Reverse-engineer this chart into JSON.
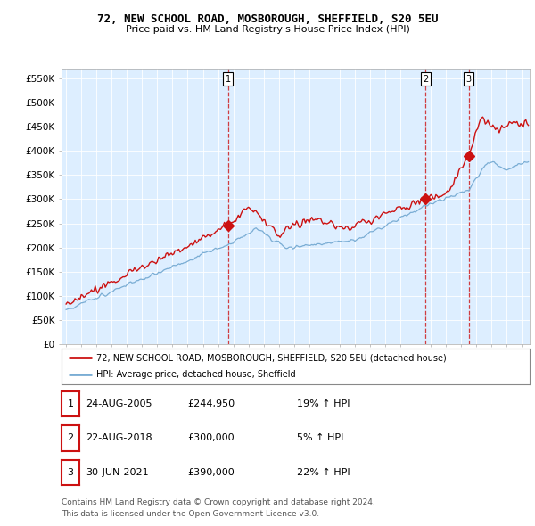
{
  "title": "72, NEW SCHOOL ROAD, MOSBOROUGH, SHEFFIELD, S20 5EU",
  "subtitle": "Price paid vs. HM Land Registry's House Price Index (HPI)",
  "ytick_values": [
    0,
    50000,
    100000,
    150000,
    200000,
    250000,
    300000,
    350000,
    400000,
    450000,
    500000,
    550000
  ],
  "ylim": [
    0,
    570000
  ],
  "xlim_start": 1995.0,
  "xlim_end": 2025.5,
  "transactions": [
    {
      "label": "1",
      "date": "24-AUG-2005",
      "price": 244950,
      "pct": "19%",
      "x_year": 2005.65
    },
    {
      "label": "2",
      "date": "22-AUG-2018",
      "price": 300000,
      "pct": "5%",
      "x_year": 2018.65
    },
    {
      "label": "3",
      "date": "30-JUN-2021",
      "price": 390000,
      "pct": "22%",
      "x_year": 2021.5
    }
  ],
  "legend_line1": "72, NEW SCHOOL ROAD, MOSBOROUGH, SHEFFIELD, S20 5EU (detached house)",
  "legend_line2": "HPI: Average price, detached house, Sheffield",
  "footnote1": "Contains HM Land Registry data © Crown copyright and database right 2024.",
  "footnote2": "This data is licensed under the Open Government Licence v3.0.",
  "hpi_color": "#7aadd4",
  "price_color": "#cc1111",
  "background_color": "#ffffff",
  "chart_bg_color": "#ddeeff",
  "grid_color": "#ffffff",
  "table_rows": [
    [
      "1",
      "24-AUG-2005",
      "£244,950",
      "19% ↑ HPI"
    ],
    [
      "2",
      "22-AUG-2018",
      "£300,000",
      "5% ↑ HPI"
    ],
    [
      "3",
      "30-JUN-2021",
      "£390,000",
      "22% ↑ HPI"
    ]
  ]
}
